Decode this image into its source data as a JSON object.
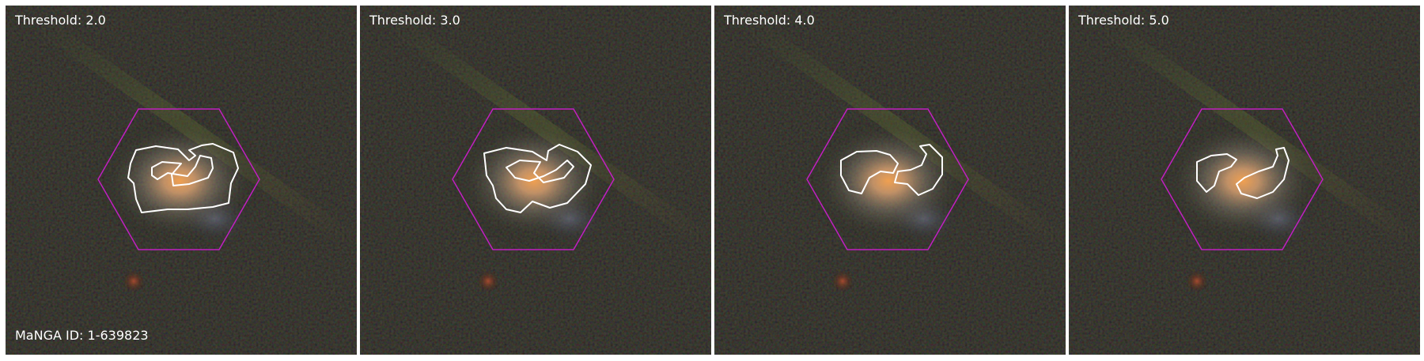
{
  "figure": {
    "manga_id_label": "MaNGA ID: 1-639823",
    "panels": [
      {
        "title": "Threshold: 2.0"
      },
      {
        "title": "Threshold: 3.0"
      },
      {
        "title": "Threshold: 4.0"
      },
      {
        "title": "Threshold: 5.0"
      }
    ]
  },
  "colors": {
    "hexagon": "#c020c0",
    "contour": "#ffffff",
    "background": "#0a0c08",
    "galaxy_core": "#e8a050"
  }
}
